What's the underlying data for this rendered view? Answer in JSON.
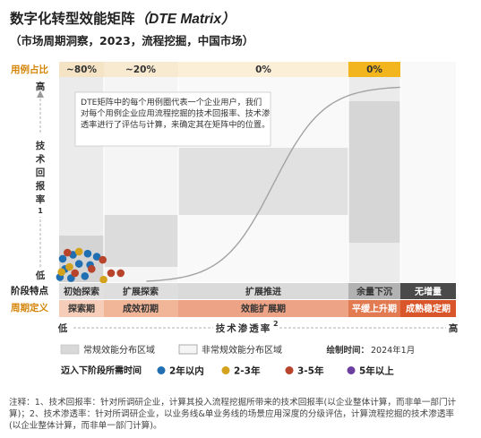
{
  "header": {
    "title": "数字化转型效能矩阵",
    "title_en": "（DTE Matrix）",
    "subtitle": "（市场周期洞察，2023，流程挖掘，中国市场）"
  },
  "chart_data": {
    "type": "scatter",
    "row_labels": {
      "usage": "用例占比",
      "stage_feature": "阶段特点",
      "period_def": "周期定义"
    },
    "usage_shares": [
      "~80%",
      "~20%",
      "0%",
      "0%"
    ],
    "stage_features": [
      "初始探索",
      "扩展探索",
      "扩展推进",
      "余量下沉",
      "无增量"
    ],
    "period_defs": [
      "探索期",
      "成效初期",
      "效能扩展期",
      "平缓上升期",
      "成熟稳定期"
    ],
    "y_axis": {
      "title_chars": [
        "技",
        "术",
        "回",
        "报",
        "率"
      ],
      "title_sup": "1",
      "high": "高",
      "low": "低"
    },
    "x_axis": {
      "title": "技术渗透率",
      "title_sup": "2",
      "low": "低",
      "high": "高"
    },
    "annotation": "DTE矩阵中的每个用例圈代表一个企业用户，我们对每个用例企业应用流程挖掘的技术回报率、技术渗透率进行了评估与计算，来确定其在矩阵中的位置。",
    "curve": {
      "type": "s-curve",
      "start": [
        0.0,
        0.0
      ],
      "end": [
        1.0,
        0.95
      ]
    },
    "regions": {
      "regular": "常规效能分布区域",
      "irregular": "非常规效能分布区域"
    },
    "draw_time_label": "绘制时间：",
    "draw_time": "2024年1月",
    "legend_title": "迈入下阶段所需时间",
    "legend": [
      {
        "label": "2年以内",
        "color": "#1F6FB2"
      },
      {
        "label": "2-3年",
        "color": "#D4A21C"
      },
      {
        "label": "3-5年",
        "color": "#B8442C"
      },
      {
        "label": "5年以上",
        "color": "#6B3FA0"
      }
    ],
    "points": [
      {
        "x": 0.009,
        "y": 0.11,
        "group": "2年以内"
      },
      {
        "x": 0.035,
        "y": 0.13,
        "group": "2年以内"
      },
      {
        "x": 0.072,
        "y": 0.135,
        "group": "2年以内"
      },
      {
        "x": 0.095,
        "y": 0.12,
        "group": "2年以内"
      },
      {
        "x": 0.015,
        "y": 0.06,
        "group": "2年以内"
      },
      {
        "x": 0.05,
        "y": 0.085,
        "group": "2年以内"
      },
      {
        "x": 0.078,
        "y": 0.08,
        "group": "2年以内"
      },
      {
        "x": 0.002,
        "y": 0.02,
        "group": "2年以内"
      },
      {
        "x": 0.03,
        "y": 0.015,
        "group": "2年以内"
      },
      {
        "x": 0.065,
        "y": 0.025,
        "group": "2年以内"
      },
      {
        "x": 0.05,
        "y": 0.145,
        "group": "2-3年"
      },
      {
        "x": 0.026,
        "y": 0.07,
        "group": "2-3年"
      },
      {
        "x": 0.006,
        "y": 0.045,
        "group": "2-3年"
      },
      {
        "x": 0.112,
        "y": 0.008,
        "group": "2-3年"
      },
      {
        "x": 0.021,
        "y": 0.14,
        "group": "3-5年"
      },
      {
        "x": 0.04,
        "y": 0.04,
        "group": "3-5年"
      },
      {
        "x": 0.082,
        "y": 0.06,
        "group": "3-5年"
      },
      {
        "x": 0.11,
        "y": 0.105,
        "group": "3-5年"
      },
      {
        "x": 0.131,
        "y": 0.04,
        "group": "3-5年"
      },
      {
        "x": 0.155,
        "y": 0.04,
        "group": "3-5年"
      }
    ]
  },
  "footnote": "注释：1、技术回报率：针对所调研企业，计算其投入流程挖掘所带来的技术回报率(以企业整体计算，而非单一部门计算)；2、技术渗透率：针对所调研企业，以业务线&单业务线的场景应用深度的分级评估，计算流程挖掘的技术渗透率(以企业整体计算，而非单一部门计算)。"
}
